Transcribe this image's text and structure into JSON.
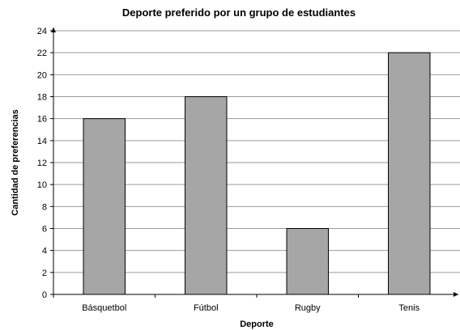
{
  "chart_data": {
    "type": "bar",
    "title": "Deporte preferido por un grupo de estudiantes",
    "xlabel": "Deporte",
    "ylabel": "Cantidad de preferencias",
    "categories": [
      "Básquetbol",
      "Fútbol",
      "Rugby",
      "Tenis"
    ],
    "values": [
      16,
      18,
      6,
      22
    ],
    "ylim": [
      0,
      24
    ],
    "yticks": [
      "0",
      "2",
      "4",
      "6",
      "8",
      "10",
      "12",
      "14",
      "16",
      "18",
      "20",
      "22",
      "24"
    ],
    "grid": true,
    "legend": "none",
    "colors": {
      "bar_fill": "#a6a6a6",
      "bar_stroke": "#000000",
      "grid": "#9a9a9a",
      "axis": "#000000"
    }
  }
}
